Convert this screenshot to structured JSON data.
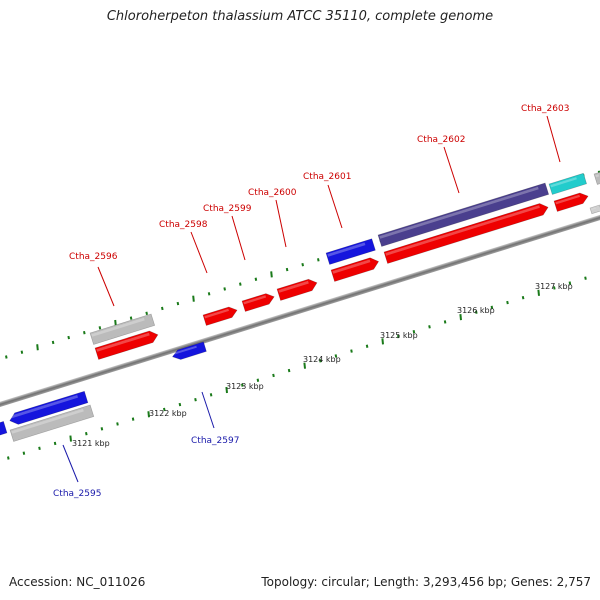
{
  "title": "Chloroherpeton thalassium ATCC 35110, complete genome",
  "accession": "Accession: NC_011026",
  "summary": "Topology: circular; Length: 3,293,456 bp; Genes: 2,757",
  "colors": {
    "forward_cds": "#ee0000",
    "reverse_cds": "#1515dd",
    "pseudo_gene": "#bbbbbb",
    "large_gene": "#4a3f8e",
    "rna_gene": "#22cccc",
    "tick": "#1a7a1a",
    "backbone": "#777777",
    "label_forward": "#cc0000",
    "label_reverse": "#1a1aaa"
  },
  "scale": [
    {
      "label": "3121 kbp"
    },
    {
      "label": "3122 kbp"
    },
    {
      "label": "3123 kbp"
    },
    {
      "label": "3124 kbp"
    },
    {
      "label": "3125 kbp"
    },
    {
      "label": "3126 kbp"
    },
    {
      "label": "3127 kbp"
    }
  ],
  "gene_labels": [
    {
      "id": "Ctha_2595",
      "strand": "reverse"
    },
    {
      "id": "Ctha_2596",
      "strand": "forward"
    },
    {
      "id": "Ctha_2597",
      "strand": "reverse"
    },
    {
      "id": "Ctha_2598",
      "strand": "forward"
    },
    {
      "id": "Ctha_2599",
      "strand": "forward"
    },
    {
      "id": "Ctha_2600",
      "strand": "forward"
    },
    {
      "id": "Ctha_2601",
      "strand": "forward"
    },
    {
      "id": "Ctha_2602",
      "strand": "forward"
    },
    {
      "id": "Ctha_2603",
      "strand": "forward"
    }
  ]
}
